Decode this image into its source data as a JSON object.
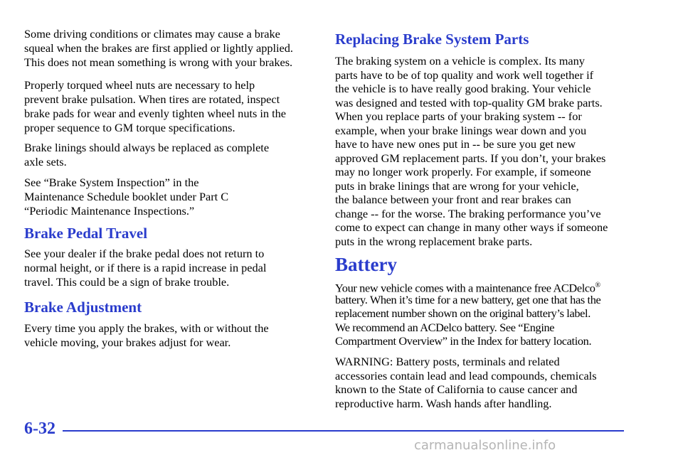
{
  "left_column": [
    {
      "lines": [
        "Some driving conditions or climates may cause a brake",
        "squeal when the brakes are first applied or lightly applied.",
        "This does not mean something is wrong with your brakes."
      ]
    },
    {
      "lines": [
        "Properly torqued wheel nuts are necessary to help",
        "prevent brake pulsation. When tires are rotated, inspect",
        "brake pads for wear and evenly tighten wheel nuts in the",
        "proper sequence to GM torque specifications."
      ]
    },
    {
      "lines": [
        "Brake linings should always be replaced as complete",
        "axle sets."
      ]
    },
    {
      "lines": [
        "See “Brake System Inspection” in the",
        "Maintenance Schedule booklet under Part C",
        "“Periodic Maintenance Inspections.”"
      ]
    },
    {
      "heading": "Brake Pedal Travel"
    },
    {
      "lines": [
        "See your dealer if the brake pedal does not return to",
        "normal height, or if there is a rapid increase in pedal",
        "travel. This could be a sign of brake trouble."
      ]
    },
    {
      "heading": "Brake Adjustment"
    },
    {
      "lines": [
        "Every time you apply the brakes, with or without the",
        "vehicle moving, your brakes adjust for wear."
      ]
    }
  ],
  "right_column": [
    {
      "heading": "Replacing Brake System Parts"
    },
    {
      "lines": [
        "The braking system on a vehicle is complex. Its many",
        "parts have to be of top quality and work well together if",
        "the vehicle is to have really good braking. Your vehicle",
        "was designed and tested with top-quality GM brake parts.",
        "When you replace parts of your braking system -- for",
        "example, when your brake linings wear down and you",
        "have to have new ones put in -- be sure you get new",
        "approved GM replacement parts. If you don’t, your brakes",
        "may no longer work properly. For example, if someone",
        "puts in brake linings that are wrong for your vehicle,",
        "the balance between your front and rear brakes can",
        "change -- for the worse. The braking performance you’ve",
        "come to expect can change in many other ways if someone",
        "puts in the wrong replacement brake parts."
      ]
    },
    {
      "heading": "Battery"
    },
    {
      "lines": [
        "Your new vehicle comes with a maintenance free ACDelco",
        "battery. When it’s time for a new battery, get one that has the",
        "replacement number shown on the original battery’s label.",
        "We recommend an ACDelco battery. See “Engine",
        "Compartment Overview” in the Index for battery location."
      ],
      "registered_mark": "®"
    },
    {
      "lines": [
        "WARNING: Battery posts, terminals and related",
        "accessories contain lead and lead compounds, chemicals",
        "known to the State of California to cause cancer and",
        "reproductive harm. Wash hands after handling."
      ]
    }
  ],
  "footer": {
    "page_number": "6-32",
    "watermark": "carmanualsonline.info"
  }
}
